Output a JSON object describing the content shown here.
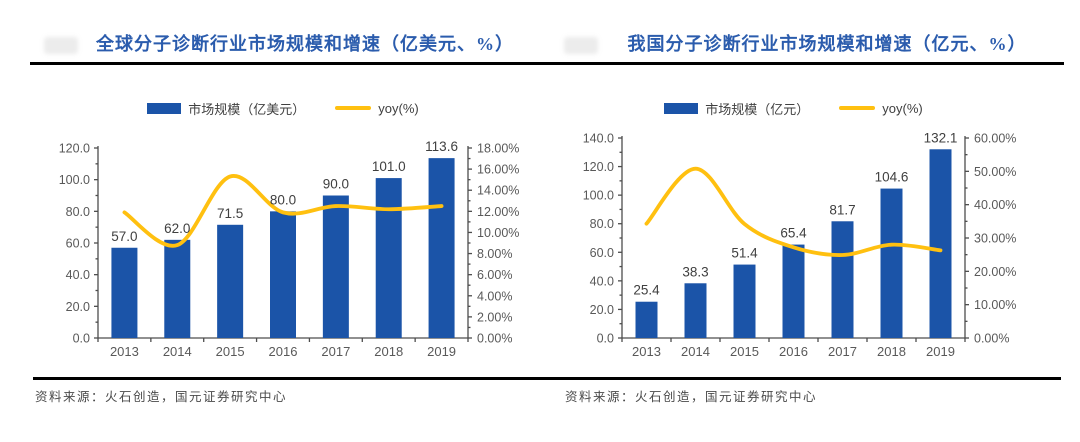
{
  "header": {
    "left_title": "全球分子诊断行业市场规模和增速（亿美元、%）",
    "right_title": "我国分子诊断行业市场规模和增速（亿元、%）",
    "title_color": "#2b5cad"
  },
  "footer": {
    "left_source": "资料来源：火石创造，国元证券研究中心",
    "right_source": "资料来源：火石创造，国元证券研究中心"
  },
  "colors": {
    "bar": "#1b54a8",
    "line": "#ffc010",
    "axis": "#4d4d4d",
    "tick_label": "#595959",
    "data_label": "#404040",
    "title": "#2b5cad"
  },
  "chart_data": [
    {
      "type": "bar",
      "title": "全球分子诊断行业市场规模和增速（亿美元、%）",
      "legend": {
        "bar": "市场规模（亿美元）",
        "line": "yoy(%)"
      },
      "legend_position": "top",
      "grid": false,
      "categories": [
        "2013",
        "2014",
        "2015",
        "2016",
        "2017",
        "2018",
        "2019"
      ],
      "series": [
        {
          "name": "市场规模（亿美元）",
          "type": "bar",
          "axis": "left",
          "values": [
            57.0,
            62.0,
            71.5,
            80.0,
            90.0,
            101.0,
            113.6
          ],
          "labels": [
            "57.0",
            "62.0",
            "71.5",
            "80.0",
            "90.0",
            "101.0",
            "113.6"
          ]
        },
        {
          "name": "yoy(%)",
          "type": "line",
          "axis": "right",
          "values": [
            11.9,
            8.8,
            15.3,
            11.9,
            12.5,
            12.2,
            12.5
          ]
        }
      ],
      "left_axis": {
        "min": 0,
        "max": 120,
        "step": 20,
        "tick_labels": [
          "0.0",
          "20.0",
          "40.0",
          "60.0",
          "80.0",
          "100.0",
          "120.0"
        ]
      },
      "right_axis": {
        "min": 0,
        "max": 18,
        "step": 2,
        "tick_labels": [
          "0.00%",
          "2.00%",
          "4.00%",
          "6.00%",
          "8.00%",
          "10.00%",
          "12.00%",
          "14.00%",
          "16.00%",
          "18.00%"
        ]
      }
    },
    {
      "type": "bar",
      "title": "我国分子诊断行业市场规模和增速（亿元、%）",
      "legend": {
        "bar": "市场规模（亿元）",
        "line": "yoy(%)"
      },
      "legend_position": "top",
      "grid": false,
      "categories": [
        "2013",
        "2014",
        "2015",
        "2016",
        "2017",
        "2018",
        "2019"
      ],
      "series": [
        {
          "name": "市场规模（亿元）",
          "type": "bar",
          "axis": "left",
          "values": [
            25.4,
            38.3,
            51.4,
            65.4,
            81.7,
            104.6,
            132.1
          ],
          "labels": [
            "25.4",
            "38.3",
            "51.4",
            "65.4",
            "81.7",
            "104.6",
            "132.1"
          ]
        },
        {
          "name": "yoy(%)",
          "type": "line",
          "axis": "right",
          "values": [
            34.3,
            50.8,
            34.2,
            27.2,
            24.9,
            28.0,
            26.3
          ]
        }
      ],
      "left_axis": {
        "min": 0,
        "max": 140,
        "step": 20,
        "tick_labels": [
          "0.0",
          "20.0",
          "40.0",
          "60.0",
          "80.0",
          "100.0",
          "120.0",
          "140.0"
        ]
      },
      "right_axis": {
        "min": 0,
        "max": 60,
        "step": 10,
        "tick_labels": [
          "0.00%",
          "10.00%",
          "20.00%",
          "30.00%",
          "40.00%",
          "50.00%",
          "60.00%"
        ]
      }
    }
  ]
}
